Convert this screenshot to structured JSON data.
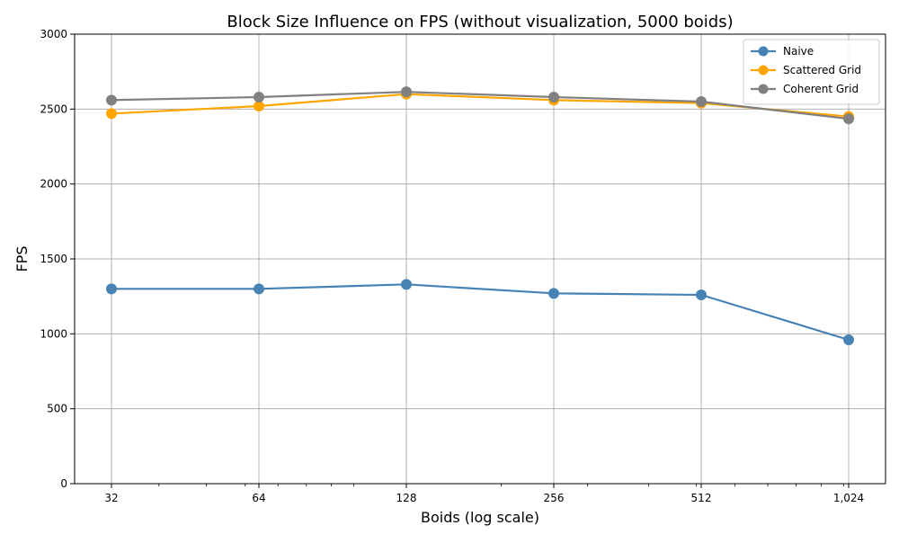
{
  "chart_data": {
    "type": "line",
    "title": "Block Size Influence on FPS (without visualization, 5000 boids)",
    "xlabel": "Boids (log scale)",
    "ylabel": "FPS",
    "x_scale": "log2",
    "x": [
      32,
      64,
      128,
      256,
      512,
      1024
    ],
    "x_tick_labels": [
      "32",
      "64",
      "128",
      "256",
      "512",
      "1,024"
    ],
    "y_ticks": [
      0,
      500,
      1000,
      1500,
      2000,
      2500,
      3000
    ],
    "y_tick_labels": [
      "0",
      "500",
      "1000",
      "1500",
      "2000",
      "2500",
      "3000"
    ],
    "ylim": [
      0,
      3000
    ],
    "grid": true,
    "legend_position": "top-right",
    "series": [
      {
        "name": "Naive",
        "color": "#4682b4",
        "values": [
          1300,
          1300,
          1330,
          1270,
          1260,
          960
        ]
      },
      {
        "name": "Scattered Grid",
        "color": "#ffa500",
        "values": [
          2470,
          2520,
          2600,
          2560,
          2540,
          2450
        ]
      },
      {
        "name": "Coherent Grid",
        "color": "#808080",
        "values": [
          2560,
          2580,
          2615,
          2580,
          2550,
          2435
        ]
      }
    ]
  }
}
